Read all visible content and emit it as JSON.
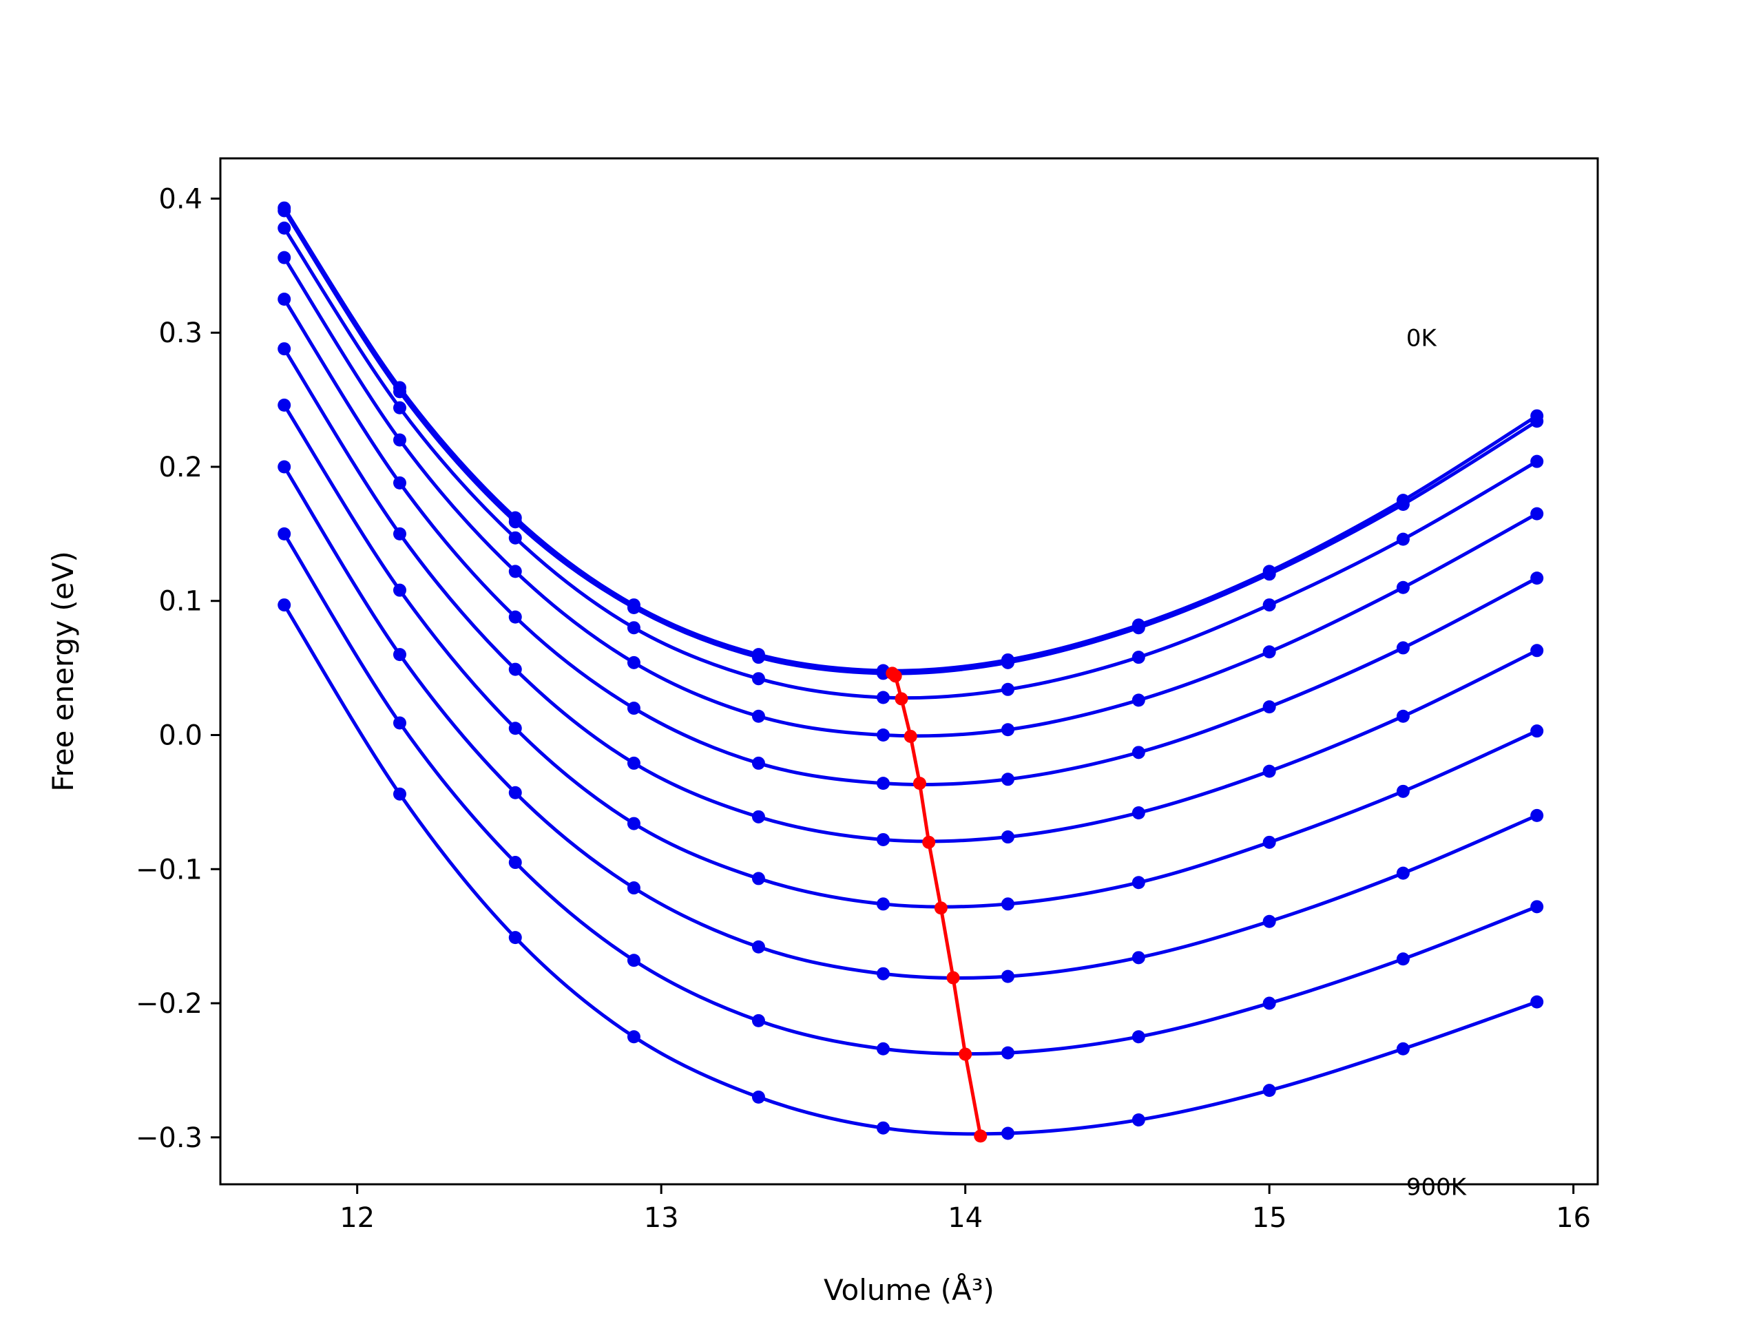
{
  "chart_data": {
    "type": "line",
    "title": "",
    "xlabel": "Volume (Å³)",
    "ylabel": "Free energy (eV)",
    "xlim": [
      11.55,
      16.08
    ],
    "ylim": [
      -0.335,
      0.43
    ],
    "xticks": [
      12,
      13,
      14,
      15,
      16
    ],
    "yticks": [
      0.4,
      0.3,
      0.2,
      0.1,
      0.0,
      -0.1,
      -0.2,
      -0.3
    ],
    "ytick_labels": [
      "0.4",
      "0.3",
      "0.2",
      "0.1",
      "0.0",
      "−0.1",
      "−0.2",
      "−0.3"
    ],
    "grid": false,
    "legend": "none",
    "annotations": [
      {
        "text": "0K",
        "x": 15.45,
        "y": 0.29
      },
      {
        "text": "900K",
        "x": 15.45,
        "y": -0.343
      }
    ],
    "x": [
      11.76,
      12.14,
      12.52,
      12.91,
      13.32,
      13.73,
      14.14,
      14.57,
      15.0,
      15.44,
      15.88
    ],
    "series": [
      {
        "values": [
          0.393,
          0.259,
          0.162,
          0.097,
          0.06,
          0.048,
          0.056,
          0.082,
          0.122,
          0.175,
          0.238
        ]
      },
      {
        "values": [
          0.391,
          0.256,
          0.159,
          0.095,
          0.058,
          0.046,
          0.054,
          0.08,
          0.12,
          0.172,
          0.234
        ]
      },
      {
        "values": [
          0.378,
          0.244,
          0.147,
          0.08,
          0.042,
          0.028,
          0.034,
          0.058,
          0.097,
          0.146,
          0.204
        ]
      },
      {
        "values": [
          0.356,
          0.22,
          0.122,
          0.054,
          0.014,
          0.0,
          0.004,
          0.026,
          0.062,
          0.11,
          0.165
        ]
      },
      {
        "values": [
          0.325,
          0.188,
          0.088,
          0.02,
          -0.021,
          -0.036,
          -0.033,
          -0.013,
          0.021,
          0.065,
          0.117
        ]
      },
      {
        "values": [
          0.288,
          0.15,
          0.049,
          -0.021,
          -0.061,
          -0.078,
          -0.076,
          -0.058,
          -0.027,
          0.014,
          0.063
        ]
      },
      {
        "values": [
          0.246,
          0.108,
          0.005,
          -0.066,
          -0.107,
          -0.126,
          -0.126,
          -0.11,
          -0.08,
          -0.042,
          0.003
        ]
      },
      {
        "values": [
          0.2,
          0.06,
          -0.043,
          -0.114,
          -0.158,
          -0.178,
          -0.18,
          -0.166,
          -0.139,
          -0.103,
          -0.06
        ]
      },
      {
        "values": [
          0.15,
          0.009,
          -0.095,
          -0.168,
          -0.213,
          -0.234,
          -0.237,
          -0.225,
          -0.2,
          -0.167,
          -0.128
        ]
      },
      {
        "values": [
          0.097,
          -0.044,
          -0.151,
          -0.225,
          -0.27,
          -0.293,
          -0.297,
          -0.287,
          -0.265,
          -0.234,
          -0.199
        ]
      }
    ],
    "minima": {
      "x": [
        13.76,
        13.77,
        13.79,
        13.82,
        13.85,
        13.88,
        13.92,
        13.96,
        14.0,
        14.05
      ],
      "values": [
        0.046,
        0.044,
        0.027,
        -0.001,
        -0.036,
        -0.08,
        -0.129,
        -0.181,
        -0.238,
        -0.299
      ]
    },
    "colors": {
      "curves": "#0000ee",
      "minima": "#ff0000",
      "axes": "#000000"
    }
  }
}
